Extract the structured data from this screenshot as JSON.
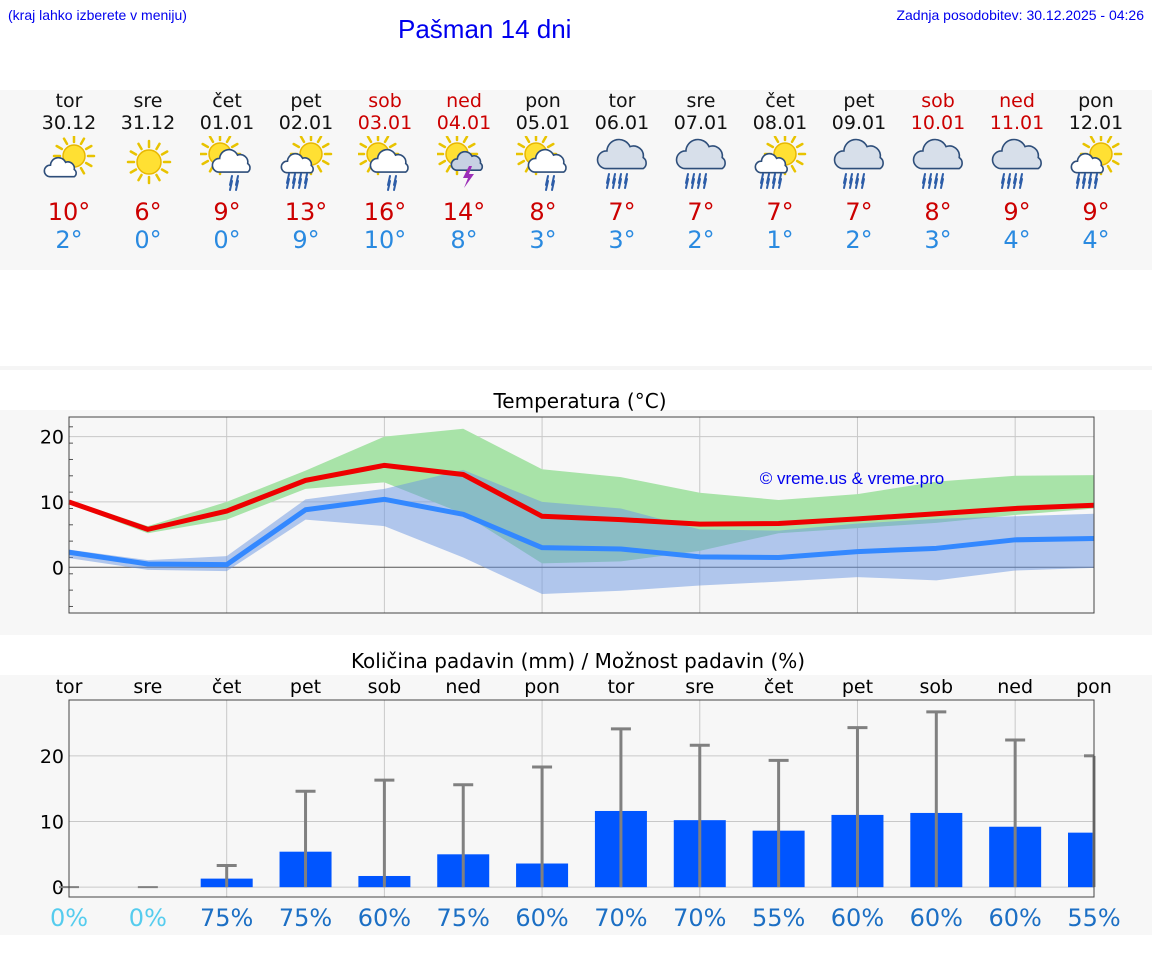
{
  "header": {
    "location_hint": "(kraj lahko izberete v meniju)",
    "title": "Pašman 14 dni",
    "updated": "Zadnja posodobitev: 30.12.2025 - 04:26"
  },
  "colors": {
    "link": "#0000ee",
    "weekend": "#cc0000",
    "max_temp": "#ee0000",
    "min_temp": "#3388ff",
    "max_band": "#a8e3a8",
    "min_band": "#aac4f0",
    "bar": "#0055ff",
    "pct_dry": "#55ccee",
    "pct": "#1c6fc4"
  },
  "days": [
    {
      "weekday": "tor",
      "date": "30.12",
      "weekend": false,
      "icon": "partly-cloudy-icon",
      "tmax": "10°",
      "tmin": "2°"
    },
    {
      "weekday": "sre",
      "date": "31.12",
      "weekend": false,
      "icon": "sun-icon",
      "tmax": "6°",
      "tmin": "0°"
    },
    {
      "weekday": "čet",
      "date": "01.01",
      "weekend": false,
      "icon": "sun-cloud-rain-icon",
      "tmax": "9°",
      "tmin": "0°"
    },
    {
      "weekday": "pet",
      "date": "02.01",
      "weekend": false,
      "icon": "sun-cloud-heavy-rain-icon",
      "tmax": "13°",
      "tmin": "9°"
    },
    {
      "weekday": "sob",
      "date": "03.01",
      "weekend": true,
      "icon": "sun-cloud-rain-icon",
      "tmax": "16°",
      "tmin": "10°"
    },
    {
      "weekday": "ned",
      "date": "04.01",
      "weekend": true,
      "icon": "sun-thunder-icon",
      "tmax": "14°",
      "tmin": "8°"
    },
    {
      "weekday": "pon",
      "date": "05.01",
      "weekend": false,
      "icon": "sun-cloud-rain-icon",
      "tmax": "8°",
      "tmin": "3°"
    },
    {
      "weekday": "tor",
      "date": "06.01",
      "weekend": false,
      "icon": "cloud-rain-icon",
      "tmax": "7°",
      "tmin": "3°"
    },
    {
      "weekday": "sre",
      "date": "07.01",
      "weekend": false,
      "icon": "cloud-rain-icon",
      "tmax": "7°",
      "tmin": "2°"
    },
    {
      "weekday": "čet",
      "date": "08.01",
      "weekend": false,
      "icon": "sun-cloud-heavy-rain-icon",
      "tmax": "7°",
      "tmin": "1°"
    },
    {
      "weekday": "pet",
      "date": "09.01",
      "weekend": false,
      "icon": "cloud-rain-icon",
      "tmax": "7°",
      "tmin": "2°"
    },
    {
      "weekday": "sob",
      "date": "10.01",
      "weekend": true,
      "icon": "cloud-rain-icon",
      "tmax": "8°",
      "tmin": "3°"
    },
    {
      "weekday": "ned",
      "date": "11.01",
      "weekend": true,
      "icon": "cloud-rain-icon",
      "tmax": "9°",
      "tmin": "4°"
    },
    {
      "weekday": "pon",
      "date": "12.01",
      "weekend": false,
      "icon": "sun-cloud-heavy-rain-icon",
      "tmax": "9°",
      "tmin": "4°"
    }
  ],
  "chart_data": [
    {
      "type": "line",
      "title": "Temperatura (°C)",
      "watermark": "© vreme.us & vreme.pro",
      "ylim": [
        -7,
        23
      ],
      "yticks": [
        0,
        10,
        20
      ],
      "xlim": [
        0,
        13
      ],
      "series": [
        {
          "name": "max",
          "values": [
            10,
            5.8,
            8.6,
            13.3,
            15.6,
            14.2,
            7.8,
            7.3,
            6.6,
            6.7,
            7.4,
            8.2,
            9.0,
            9.5
          ]
        },
        {
          "name": "min",
          "values": [
            2.3,
            0.5,
            0.4,
            8.8,
            10.4,
            8.1,
            3.0,
            2.8,
            1.6,
            1.5,
            2.4,
            2.9,
            4.2,
            4.4
          ]
        }
      ],
      "bands": [
        {
          "name": "max-range",
          "upper": [
            10.3,
            6.3,
            10.0,
            14.8,
            20.0,
            21.2,
            15.0,
            13.8,
            11.4,
            10.3,
            11.2,
            13.1,
            14.0,
            14.1
          ],
          "lower": [
            9.7,
            5.2,
            7.3,
            12.0,
            13.0,
            8.2,
            0.6,
            0.9,
            2.5,
            5.2,
            6.0,
            6.8,
            8.0,
            9.0
          ]
        },
        {
          "name": "min-range",
          "upper": [
            2.7,
            1.1,
            1.7,
            10.4,
            12.0,
            14.9,
            10.0,
            9.0,
            5.8,
            5.6,
            6.7,
            7.4,
            7.8,
            8.2
          ],
          "lower": [
            1.4,
            -0.4,
            -0.6,
            7.3,
            6.3,
            1.5,
            -4.1,
            -3.6,
            -2.8,
            -2.2,
            -1.5,
            -2.0,
            -0.5,
            -0.1
          ]
        }
      ]
    },
    {
      "type": "bar",
      "title": "Količina padavin (mm) / Možnost padavin (%)",
      "categories": [
        "tor",
        "sre",
        "čet",
        "pet",
        "sob",
        "ned",
        "pon",
        "tor",
        "sre",
        "čet",
        "pet",
        "sob",
        "ned",
        "pon"
      ],
      "ylim": [
        -1.5,
        28.5
      ],
      "yticks": [
        0,
        10,
        20
      ],
      "values": [
        0,
        0,
        1.3,
        5.4,
        1.7,
        5.0,
        3.6,
        11.6,
        10.2,
        8.6,
        11.0,
        11.3,
        9.2,
        8.3
      ],
      "error_max": [
        0,
        0,
        3.3,
        14.6,
        16.3,
        15.6,
        18.3,
        24.1,
        21.6,
        19.3,
        24.3,
        26.7,
        22.4,
        20.0
      ],
      "chance": [
        "0%",
        "0%",
        "75%",
        "75%",
        "60%",
        "75%",
        "60%",
        "70%",
        "70%",
        "55%",
        "60%",
        "60%",
        "60%",
        "55%"
      ]
    }
  ]
}
